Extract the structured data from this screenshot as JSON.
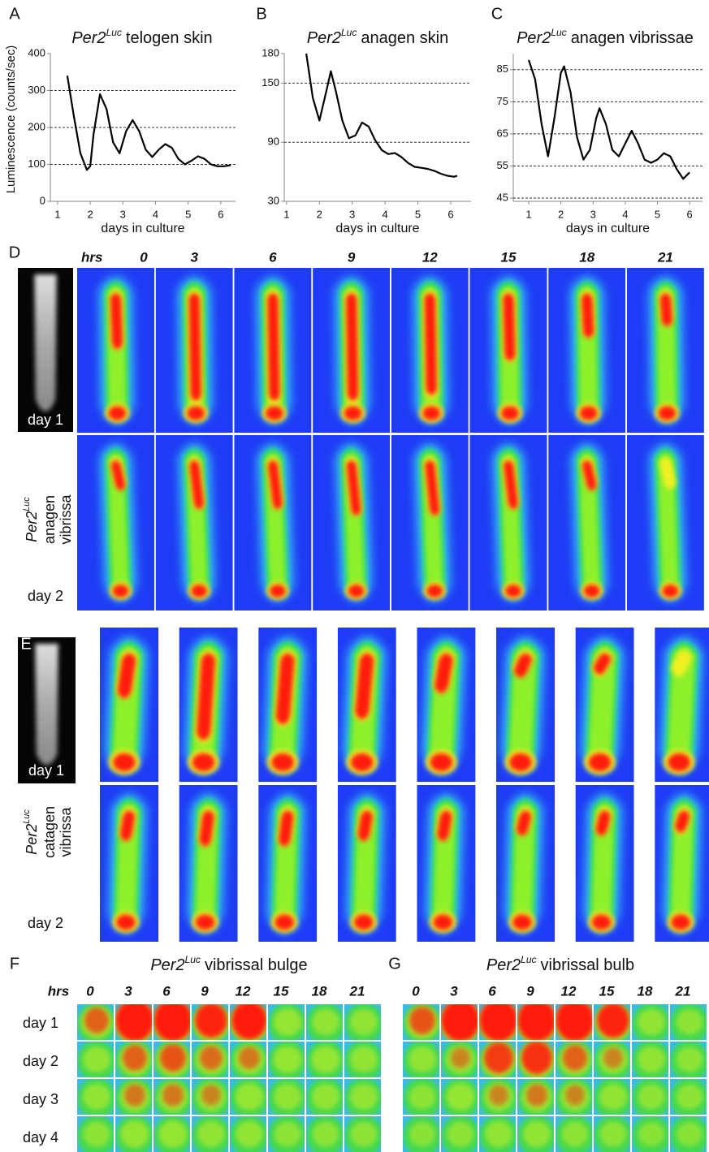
{
  "chart_data": [
    {
      "type": "line",
      "panel": "A",
      "title_prefix": "Per2",
      "title_superscript": "Luc",
      "title": "telogen skin",
      "y_label": "Luminescence (counts/sec)",
      "x_label": "days in culture",
      "x": [
        1.3,
        1.5,
        1.7,
        1.9,
        2.0,
        2.1,
        2.3,
        2.5,
        2.7,
        2.9,
        3.1,
        3.3,
        3.5,
        3.7,
        3.9,
        4.1,
        4.3,
        4.5,
        4.7,
        4.9,
        5.1,
        5.3,
        5.5,
        5.7,
        5.9,
        6.1,
        6.3
      ],
      "values": [
        340,
        230,
        130,
        85,
        95,
        180,
        290,
        250,
        160,
        130,
        190,
        220,
        190,
        140,
        120,
        140,
        155,
        145,
        115,
        100,
        110,
        122,
        115,
        100,
        95,
        95,
        98
      ],
      "color": "#000000",
      "xlim": [
        0.78,
        6.45
      ],
      "ylim": [
        0,
        400
      ],
      "xticks": [
        1,
        2,
        3,
        4,
        5,
        6
      ],
      "yticks": [
        0,
        100,
        200,
        300,
        400
      ],
      "grid": true
    },
    {
      "type": "line",
      "panel": "B",
      "title_prefix": "Per2",
      "title_superscript": "Luc",
      "title": "anagen skin",
      "x_label": "days in culture",
      "x": [
        1.6,
        1.8,
        2.0,
        2.2,
        2.35,
        2.5,
        2.7,
        2.9,
        3.1,
        3.3,
        3.5,
        3.7,
        3.9,
        4.1,
        4.3,
        4.5,
        4.7,
        4.9,
        5.1,
        5.3,
        5.5,
        5.7,
        5.9,
        6.1,
        6.2
      ],
      "values": [
        180,
        135,
        112,
        140,
        162,
        142,
        112,
        94,
        97,
        110,
        106,
        92,
        82,
        78,
        79,
        75,
        69,
        65,
        64,
        63,
        61,
        58,
        56,
        55,
        56
      ],
      "color": "#000000",
      "xlim": [
        0.93,
        6.62
      ],
      "ylim": [
        30,
        180
      ],
      "xticks": [
        1,
        2,
        3,
        4,
        5,
        6
      ],
      "yticks": [
        30,
        90,
        150,
        180
      ],
      "grid": true
    },
    {
      "type": "line",
      "panel": "C",
      "title_prefix": "Per2",
      "title_superscript": "Luc",
      "title": "anagen vibrissae",
      "x_label": "days in culture",
      "x": [
        1.0,
        1.2,
        1.4,
        1.6,
        1.8,
        2.0,
        2.1,
        2.3,
        2.5,
        2.7,
        2.9,
        3.1,
        3.2,
        3.4,
        3.6,
        3.8,
        4.0,
        4.2,
        4.4,
        4.6,
        4.8,
        5.0,
        5.2,
        5.4,
        5.6,
        5.8,
        6.0
      ],
      "values": [
        88,
        82,
        68,
        58,
        70,
        84,
        86,
        78,
        64,
        57,
        60,
        70,
        73,
        68,
        60,
        58,
        62,
        66,
        62,
        57,
        56,
        57,
        59,
        58,
        54,
        51,
        53
      ],
      "color": "#000000",
      "xlim": [
        0.52,
        6.4
      ],
      "ylim": [
        44,
        90
      ],
      "xticks": [
        1,
        2,
        3,
        4,
        5,
        6
      ],
      "yticks": [
        45,
        55,
        65,
        75,
        85
      ],
      "grid": true
    }
  ],
  "figure": {
    "D": {
      "letter": "D",
      "hrs": "hrs",
      "hours": [
        0,
        3,
        6,
        9,
        12,
        15,
        18,
        21
      ],
      "days": [
        "day 1",
        "day 2"
      ],
      "label_prefix": "Per2",
      "label_superscript": "Luc",
      "label_lines": [
        "anagen",
        "vibrissa"
      ]
    },
    "E": {
      "letter": "E",
      "days": [
        "day 1",
        "day 2"
      ],
      "label_prefix": "Per2",
      "label_superscript": "Luc",
      "label_lines": [
        "catagen",
        "vibrissa"
      ]
    },
    "F": {
      "letter": "F",
      "title_prefix": "Per2",
      "title_superscript": "Luc",
      "title": "vibrissal bulge",
      "hrs": "hrs",
      "hours": [
        0,
        3,
        6,
        9,
        12,
        15,
        18,
        21
      ],
      "days": [
        "day 1",
        "day 2",
        "day 3",
        "day 4"
      ]
    },
    "G": {
      "letter": "G",
      "title_prefix": "Per2",
      "title_superscript": "Luc",
      "title": "vibrissal bulb",
      "hours": [
        0,
        3,
        6,
        9,
        12,
        15,
        18,
        21
      ]
    }
  }
}
